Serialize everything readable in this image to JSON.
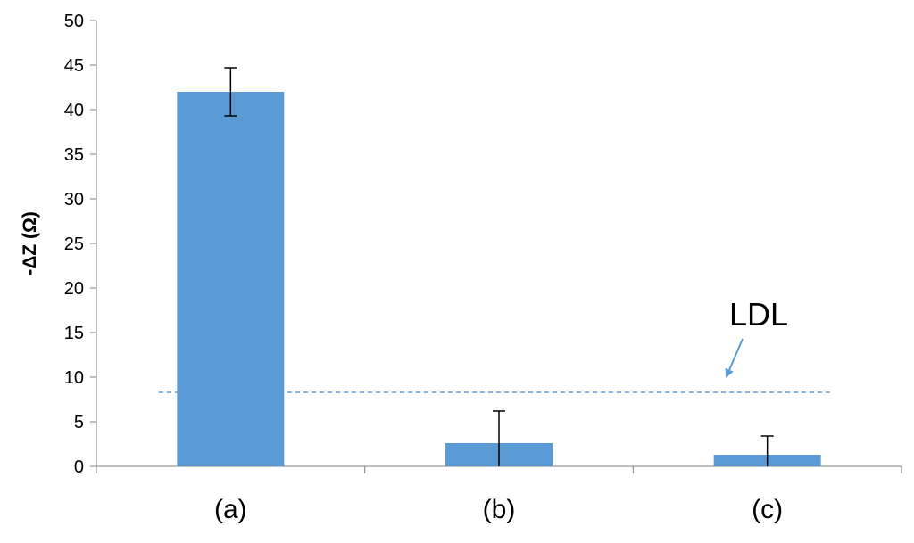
{
  "chart_data": {
    "type": "bar",
    "categories": [
      "(a)",
      "(b)",
      "(c)"
    ],
    "values": [
      42,
      2.6,
      1.3
    ],
    "error_up": [
      2.7,
      3.6,
      2.1
    ],
    "error_down": [
      2.7,
      2.6,
      1.3
    ],
    "title": "",
    "xlabel": "",
    "ylabel": "-ΔZ (Ω)",
    "ylim": [
      0,
      50
    ],
    "yticks": [
      "0",
      "5",
      "10",
      "15",
      "20",
      "25",
      "30",
      "35",
      "40",
      "45",
      "50"
    ],
    "grid": false,
    "bar_color": "#5b9bd5",
    "reference_line": {
      "value": 8.3,
      "label": "LDL",
      "color": "#5b9bd5",
      "style": "dashed"
    }
  }
}
